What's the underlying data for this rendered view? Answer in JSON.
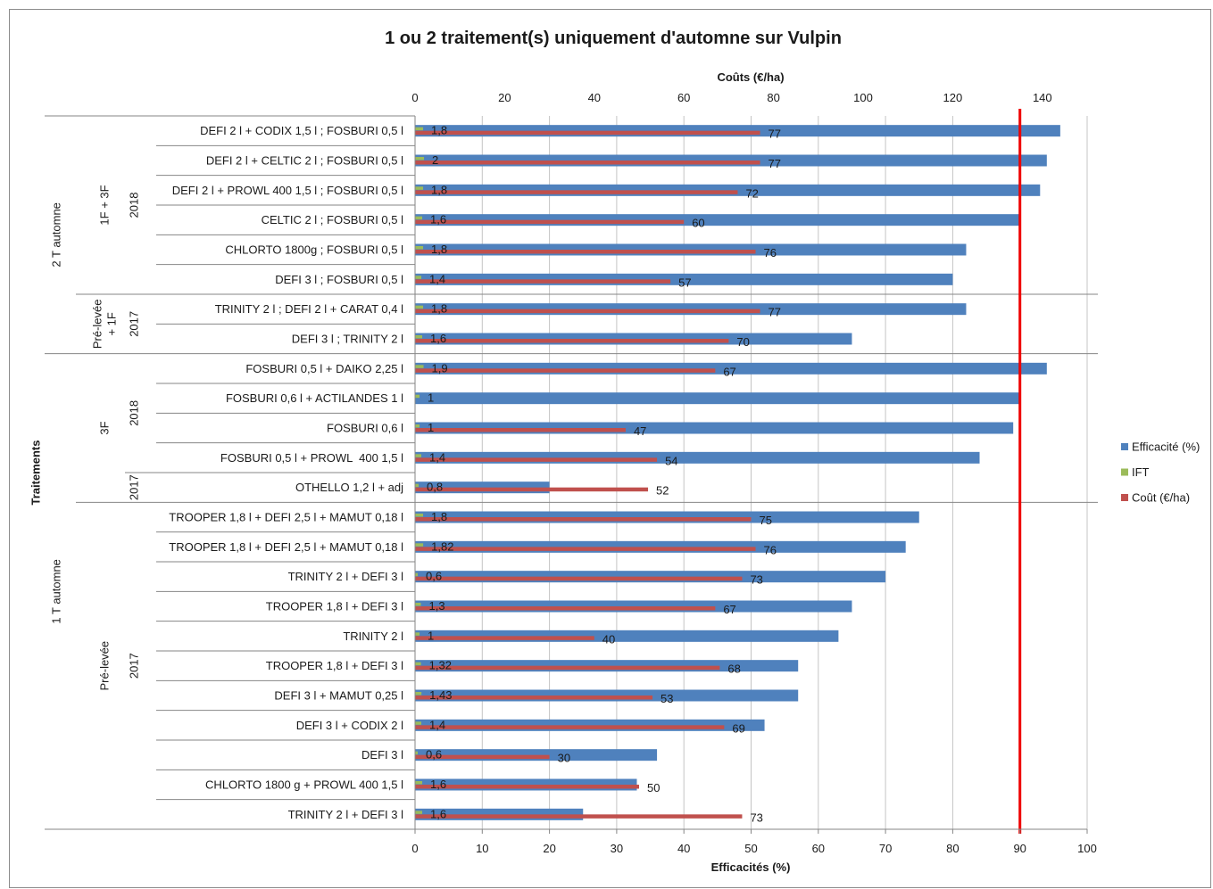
{
  "chart_data": {
    "type": "bar",
    "orientation": "horizontal",
    "title": "1 ou 2 traitement(s) uniquement d'automne sur Vulpin",
    "category_axis_title": "Traitements",
    "categories": [
      "DEFI 2 l + CODIX 1,5 l ; FOSBURI 0,5 l",
      "DEFI 2 l + CELTIC 2 l ; FOSBURI 0,5 l",
      "DEFI 2 l + PROWL 400 1,5 l ; FOSBURI 0,5 l",
      "CELTIC 2 l ; FOSBURI 0,5 l",
      "CHLORTO 1800g ; FOSBURI 0,5 l",
      "DEFI 3 l ; FOSBURI 0,5 l",
      "TRINITY 2 l ; DEFI 2 l + CARAT 0,4 l",
      "DEFI 3 l ; TRINITY 2 l",
      "FOSBURI 0,5 l + DAIKO 2,25 l",
      "FOSBURI 0,6 l + ACTILANDES 1 l",
      "FOSBURI 0,6 l",
      "FOSBURI 0,5 l + PROWL  400 1,5 l",
      "OTHELLO 1,2 l + adj",
      "TROOPER 1,8 l + DEFI 2,5 l + MAMUT 0,18 l",
      "TROOPER 1,8 l + DEFI 2,5 l + MAMUT 0,18 l",
      "TRINITY 2 l + DEFI 3 l",
      "TROOPER 1,8 l + DEFI 3 l",
      "TRINITY 2 l",
      "TROOPER 1,8 l + DEFI 3 l",
      "DEFI 3 l + MAMUT 0,25 l",
      "DEFI 3 l + CODIX 2 l",
      "DEFI 3 l",
      "CHLORTO 1800 g + PROWL 400 1,5 l",
      "TRINITY 2 l + DEFI 3 l"
    ],
    "category_groups": {
      "level1": [
        {
          "label": "2 T automne",
          "rows": [
            0,
            7
          ]
        },
        {
          "label": "1 T automne",
          "rows": [
            8,
            23
          ]
        }
      ],
      "level2": [
        {
          "lines": [
            "1F + 3F"
          ],
          "rows": [
            0,
            5
          ]
        },
        {
          "lines": [
            "Pré-levée",
            "+ 1F"
          ],
          "rows": [
            6,
            7
          ]
        },
        {
          "lines": [
            "3F"
          ],
          "rows": [
            8,
            12
          ]
        },
        {
          "lines": [
            "Pré-levée"
          ],
          "rows": [
            13,
            23
          ]
        }
      ],
      "level3": [
        {
          "label": "2018",
          "rows": [
            0,
            5
          ]
        },
        {
          "label": "2017",
          "rows": [
            6,
            7
          ]
        },
        {
          "label": "2018",
          "rows": [
            8,
            11
          ]
        },
        {
          "label": "2017",
          "rows": [
            12,
            12
          ]
        },
        {
          "label": "2017",
          "rows": [
            13,
            23
          ]
        }
      ]
    },
    "series": [
      {
        "name": "Efficacité (%)",
        "axis": "bottom",
        "color": "#4f81bd",
        "values": [
          96,
          94,
          93,
          90,
          82,
          80,
          82,
          65,
          94,
          90,
          89,
          84,
          20,
          75,
          73,
          70,
          65,
          63,
          57,
          57,
          52,
          36,
          33,
          25
        ]
      },
      {
        "name": "IFT",
        "axis": "top",
        "color": "#9bbb59",
        "values": [
          1.8,
          2,
          1.8,
          1.6,
          1.8,
          1.4,
          1.8,
          1.6,
          1.9,
          1,
          1,
          1.4,
          0.8,
          1.8,
          1.82,
          0.6,
          1.3,
          1,
          1.32,
          1.43,
          1.4,
          0.6,
          1.6,
          1.6
        ],
        "data_labels": [
          "1,8",
          "2",
          "1,8",
          "1,6",
          "1,8",
          "1,4",
          "1,8",
          "1,6",
          "1,9",
          "1",
          "1",
          "1,4",
          "0,8",
          "1,8",
          "1,82",
          "0,6",
          "1,3",
          "1",
          "1,32",
          "1,43",
          "1,4",
          "0,6",
          "1,6",
          "1,6"
        ]
      },
      {
        "name": "Coût (€/ha)",
        "axis": "top",
        "color": "#c0504d",
        "values": [
          77,
          77,
          72,
          60,
          76,
          57,
          77,
          70,
          67,
          null,
          47,
          54,
          52,
          75,
          76,
          73,
          67,
          40,
          68,
          53,
          69,
          30,
          50,
          73
        ]
      }
    ],
    "x_axis_bottom": {
      "title": "Efficacités (%)",
      "range": [
        0,
        100
      ],
      "ticks": [
        0,
        10,
        20,
        30,
        40,
        50,
        60,
        70,
        80,
        90,
        100
      ]
    },
    "x_axis_top": {
      "title": "Coûts (€/ha)",
      "range": [
        0,
        150
      ],
      "ticks": [
        0,
        20,
        40,
        60,
        80,
        100,
        120,
        140
      ]
    },
    "reference_line": {
      "axis": "bottom",
      "value": 90,
      "color": "#ee0000"
    },
    "gridlines": "vertical",
    "legend": {
      "position": "right"
    }
  }
}
